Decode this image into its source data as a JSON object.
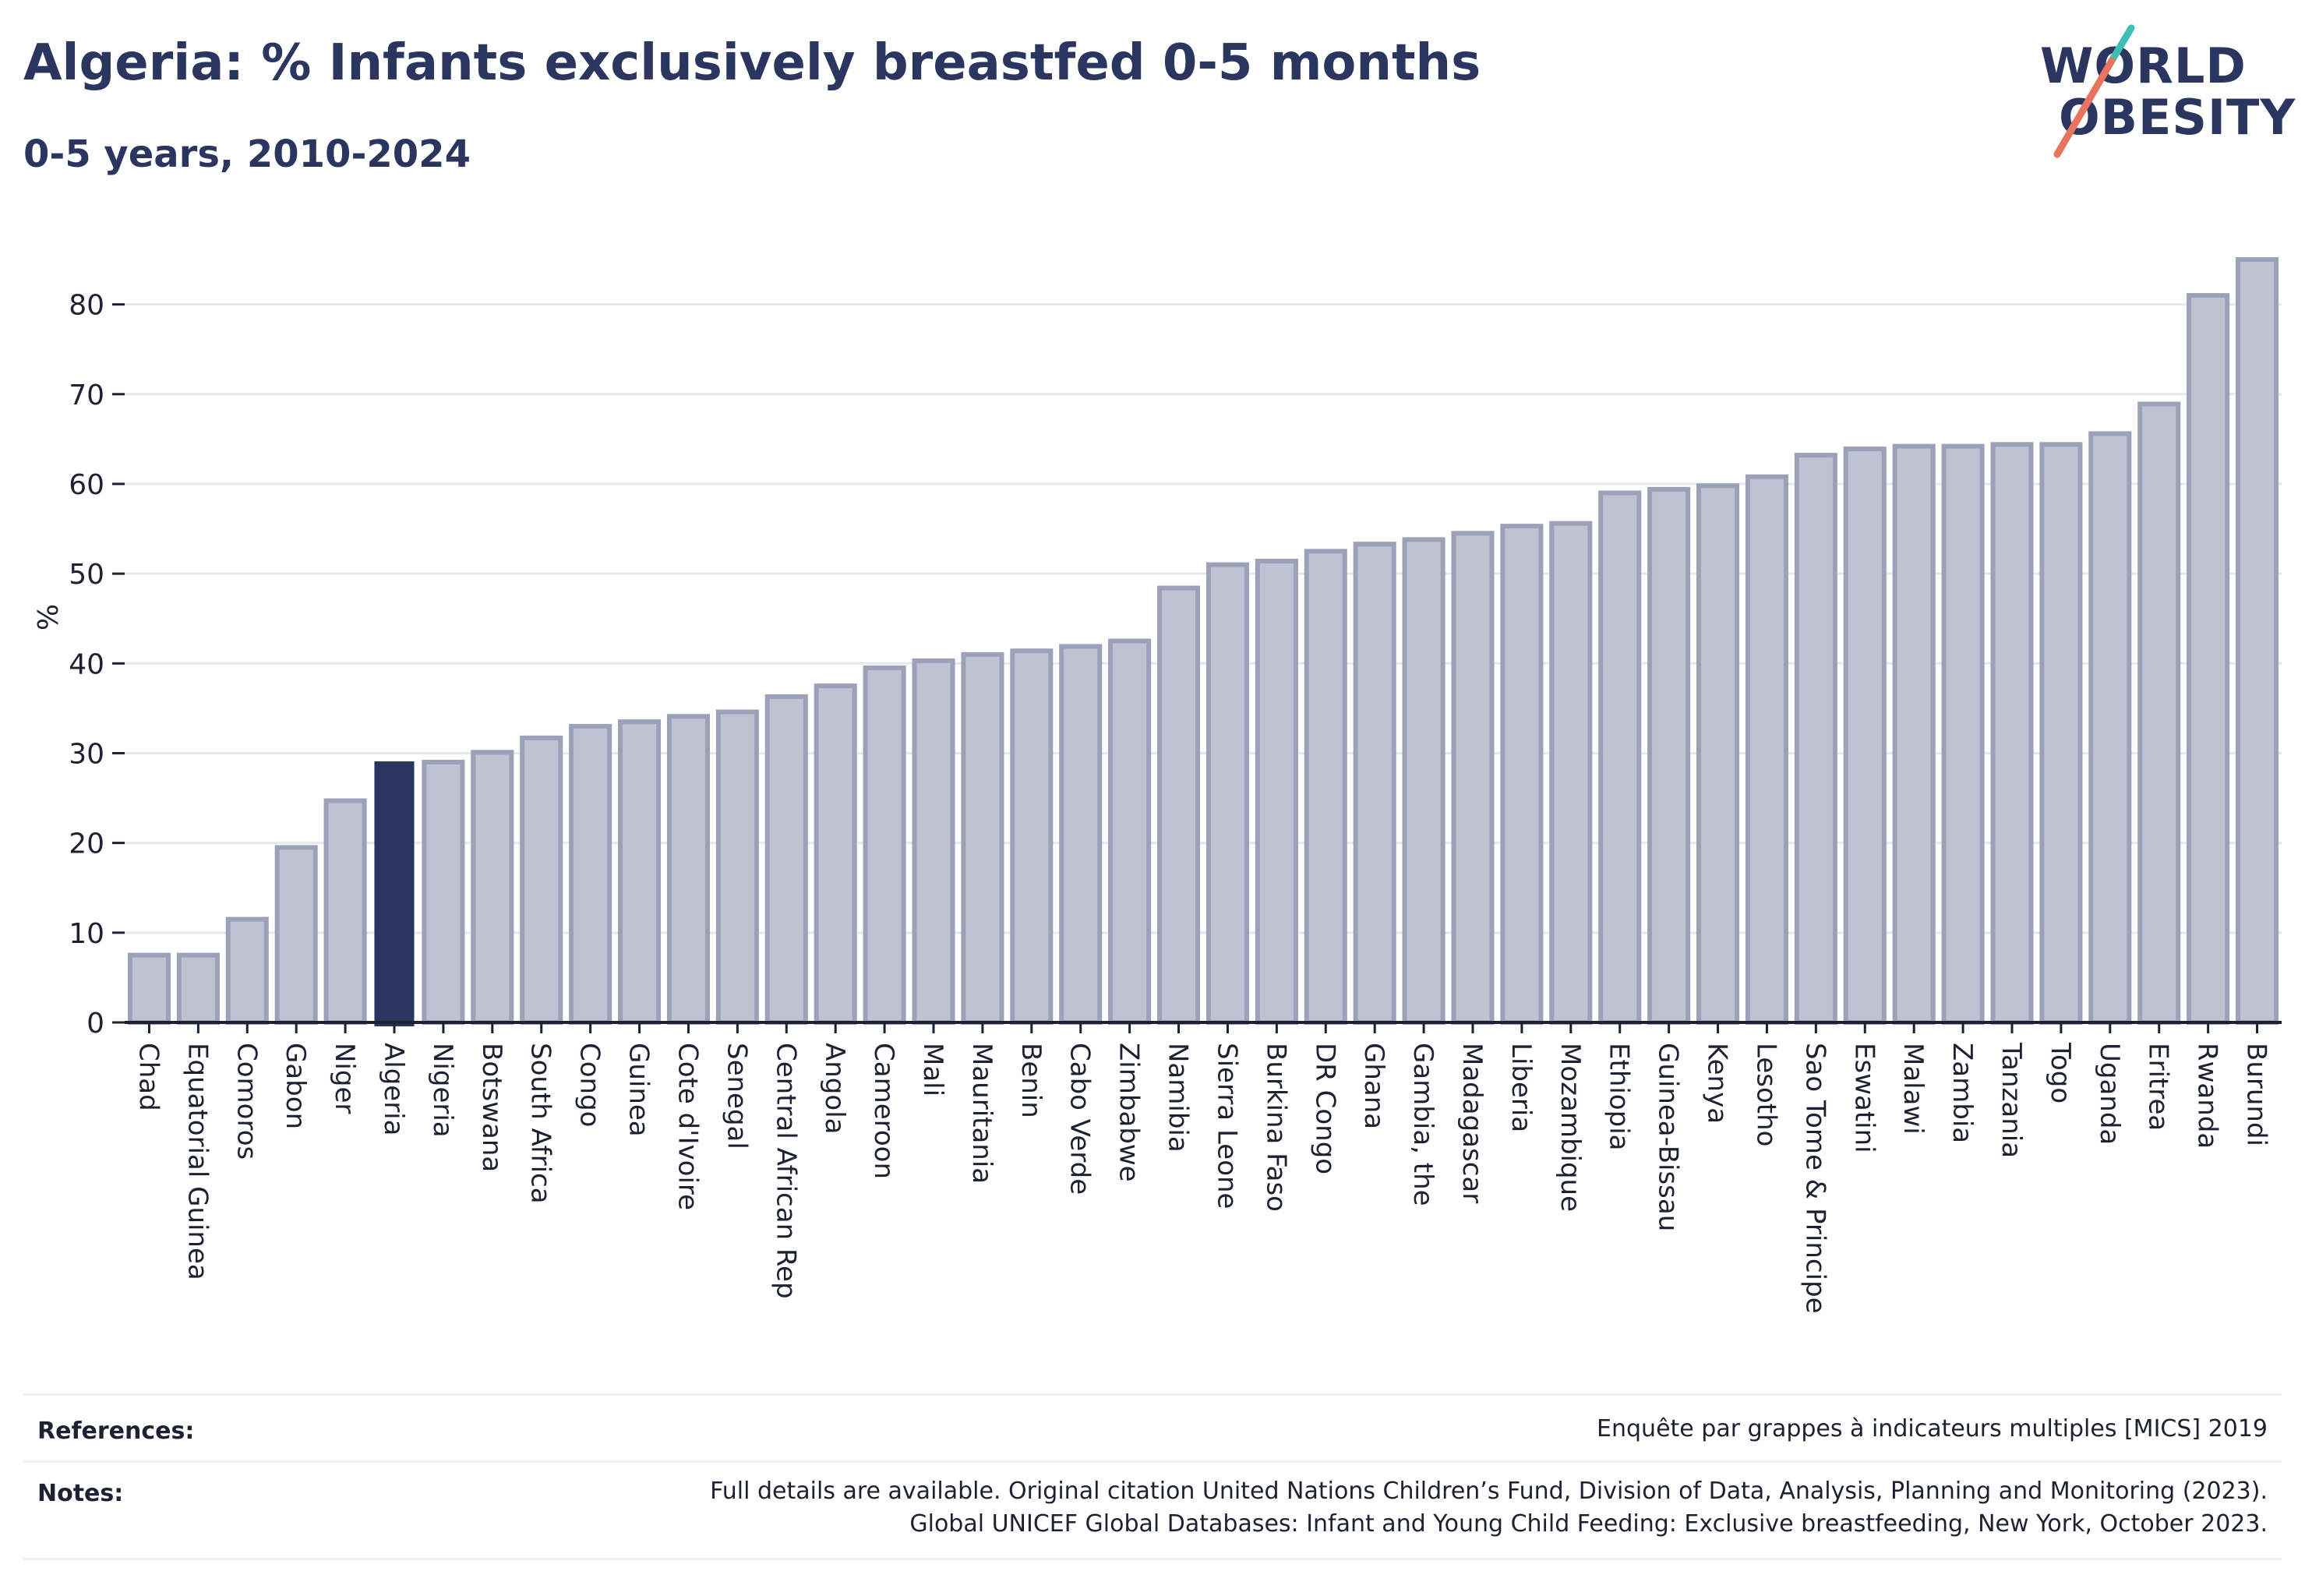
{
  "header": {
    "title": "Algeria: % Infants exclusively breastfed 0-5 months",
    "subtitle": "0-5 years, 2010-2024"
  },
  "logo": {
    "line1": "WORLD",
    "line2": "OBESITY",
    "accent_teal": "#3dbfb8",
    "accent_coral": "#e8735f"
  },
  "colors": {
    "highlight": "#2a3560",
    "bar_fill": "#bfc3d1",
    "bar_stroke": "#9ba1b9",
    "grid": "#e6e8ef",
    "text": "#2a3560"
  },
  "chart_data": {
    "type": "bar",
    "ylabel": "%",
    "ylim": [
      0,
      87
    ],
    "yticks": [
      0,
      10,
      20,
      30,
      40,
      50,
      60,
      70,
      80
    ],
    "grid": true,
    "highlight": "Algeria",
    "categories": [
      "Chad",
      "Equatorial Guinea",
      "Comoros",
      "Gabon",
      "Niger",
      "Algeria",
      "Nigeria",
      "Botswana",
      "South Africa",
      "Congo",
      "Guinea",
      "Cote d'Ivoire",
      "Senegal",
      "Central African Rep",
      "Angola",
      "Cameroon",
      "Mali",
      "Mauritania",
      "Benin",
      "Cabo Verde",
      "Zimbabwe",
      "Namibia",
      "Sierra Leone",
      "Burkina Faso",
      "DR Congo",
      "Ghana",
      "Gambia, the",
      "Madagascar",
      "Liberia",
      "Mozambique",
      "Ethiopia",
      "Guinea-Bissau",
      "Kenya",
      "Lesotho",
      "Sao Tome & Principe",
      "Eswatini",
      "Malawi",
      "Zambia",
      "Tanzania",
      "Togo",
      "Uganda",
      "Eritrea",
      "Rwanda",
      "Burundi"
    ],
    "values": [
      7.5,
      7.5,
      11.5,
      19.5,
      24.7,
      29,
      29,
      30.1,
      31.7,
      33,
      33.5,
      34.1,
      34.6,
      36.3,
      37.5,
      39.5,
      40.3,
      41,
      41.4,
      41.9,
      42.5,
      48.4,
      51,
      51.4,
      52.5,
      53.3,
      53.8,
      54.5,
      55.3,
      55.6,
      59,
      59.4,
      59.8,
      60.8,
      63.2,
      63.9,
      64.2,
      64.2,
      64.4,
      64.4,
      65.6,
      68.9,
      81,
      85
    ]
  },
  "references": {
    "label": "References:",
    "value": "Enquête par grappes à indicateurs multiples [MICS] 2019"
  },
  "notes": {
    "label": "Notes:",
    "line1": "Full details are available. Original citation United Nations Children’s Fund, Division of Data, Analysis, Planning and Monitoring (2023).",
    "line2": "Global UNICEF Global Databases: Infant and Young Child Feeding: Exclusive breastfeeding, New York, October 2023."
  }
}
